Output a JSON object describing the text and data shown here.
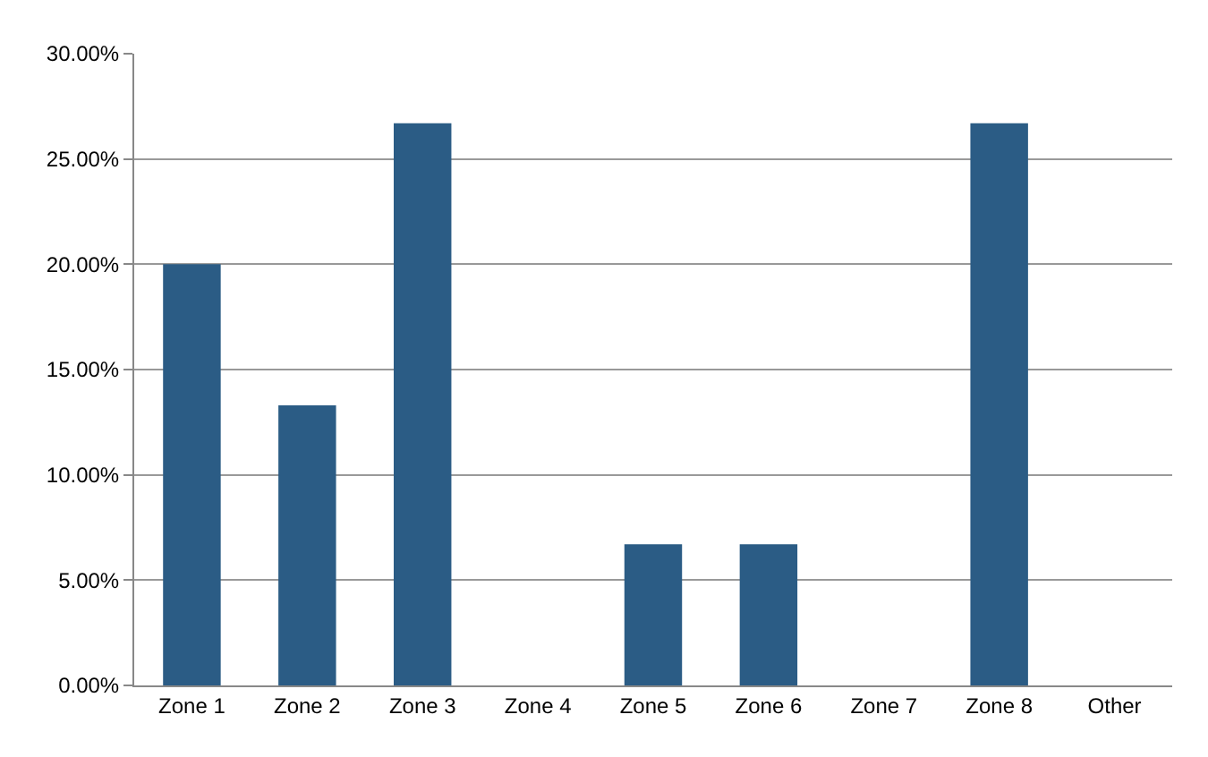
{
  "chart_data": {
    "type": "bar",
    "categories": [
      "Zone 1",
      "Zone 2",
      "Zone 3",
      "Zone 4",
      "Zone 5",
      "Zone 6",
      "Zone 7",
      "Zone 8",
      "Other"
    ],
    "values": [
      20,
      13.3,
      26.7,
      0,
      6.7,
      6.7,
      0,
      26.7,
      0
    ],
    "color": "#2b5c85",
    "ylim": [
      0,
      30
    ],
    "yticks": [
      {
        "value": 0,
        "label": "0.00%"
      },
      {
        "value": 5,
        "label": "5.00%"
      },
      {
        "value": 10,
        "label": "10.00%"
      },
      {
        "value": 15,
        "label": "15.00%"
      },
      {
        "value": 20,
        "label": "20.00%"
      },
      {
        "value": 25,
        "label": "25.00%"
      },
      {
        "value": 30,
        "label": "30.00%"
      }
    ],
    "grid": "y"
  }
}
